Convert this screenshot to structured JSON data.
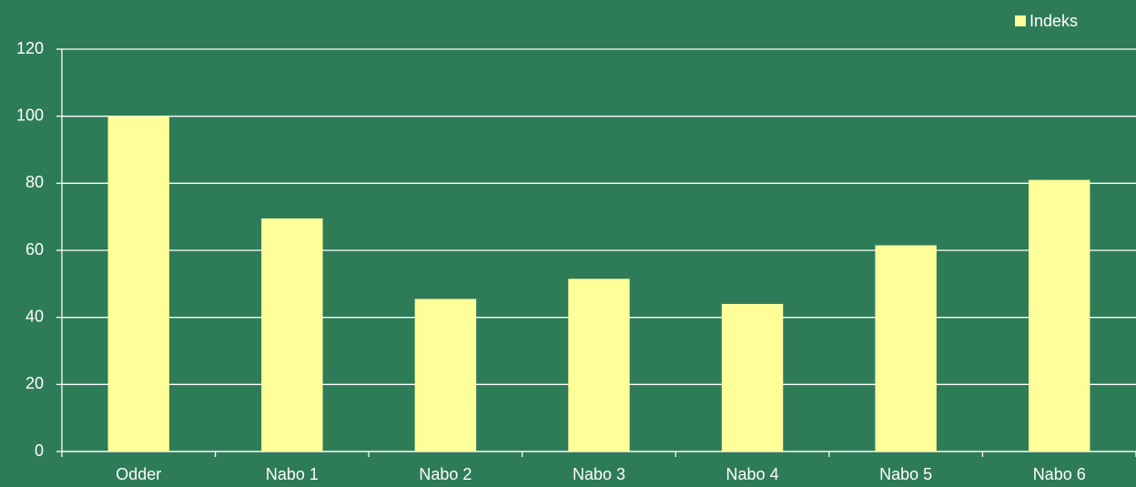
{
  "chart_data": {
    "type": "bar",
    "categories": [
      "Odder",
      "Nabo 1",
      "Nabo 2",
      "Nabo 3",
      "Nabo 4",
      "Nabo 5",
      "Nabo 6"
    ],
    "series": [
      {
        "name": "Indeks",
        "color": "#ffff99",
        "values": [
          100,
          69.5,
          45.5,
          51.5,
          44,
          61.5,
          81
        ]
      }
    ],
    "ylim": [
      0,
      120
    ],
    "yticks": [
      0,
      20,
      40,
      60,
      80,
      100,
      120
    ],
    "grid": true,
    "legend": "top-right"
  }
}
